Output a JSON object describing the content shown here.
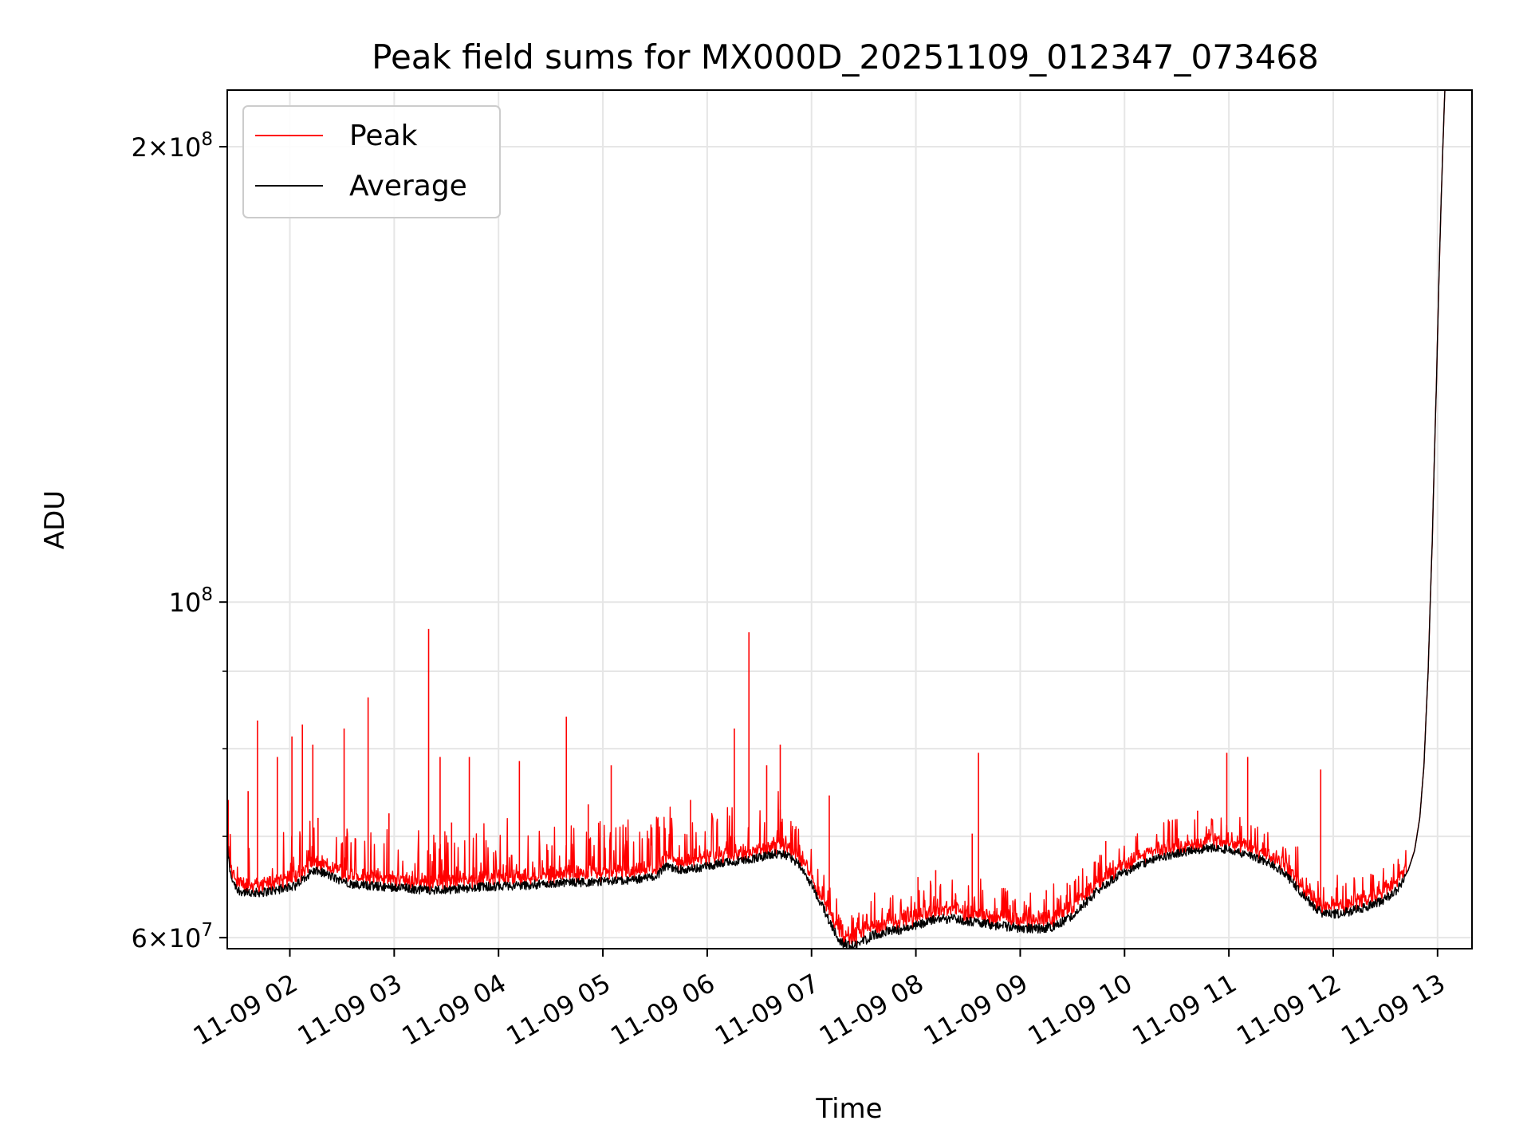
{
  "chart_data": {
    "type": "line",
    "title": "Peak field sums for MX000D_20251109_012347_073468",
    "xlabel": "Time",
    "ylabel": "ADU",
    "yscale": "log",
    "xlim_hours": [
      1.4,
      13.33
    ],
    "ylim": [
      59000000,
      218000000
    ],
    "grid": true,
    "legend_position": "top-left",
    "x_tick_hours": [
      2,
      3,
      4,
      5,
      6,
      7,
      8,
      9,
      10,
      11,
      12,
      13
    ],
    "x_tick_labels": [
      "11-09 02",
      "11-09 03",
      "11-09 04",
      "11-09 05",
      "11-09 06",
      "11-09 07",
      "11-09 08",
      "11-09 09",
      "11-09 10",
      "11-09 11",
      "11-09 12",
      "11-09 13"
    ],
    "y_ticks_major": [
      {
        "value": 60000000,
        "mantissa": "6",
        "exp": "7"
      },
      {
        "value": 100000000,
        "mantissa": "",
        "exp": "8"
      },
      {
        "value": 200000000,
        "mantissa": "2",
        "exp": "8"
      }
    ],
    "y_ticks_minor": [
      70000000,
      80000000,
      90000000
    ],
    "average_curve": [
      [
        1.4,
        69.0
      ],
      [
        1.43,
        66.0
      ],
      [
        1.5,
        64.5
      ],
      [
        1.6,
        64.2
      ],
      [
        1.75,
        64.3
      ],
      [
        1.9,
        64.6
      ],
      [
        2.05,
        64.9
      ],
      [
        2.15,
        65.8
      ],
      [
        2.22,
        66.4
      ],
      [
        2.3,
        66.3
      ],
      [
        2.45,
        65.6
      ],
      [
        2.6,
        65.1
      ],
      [
        2.8,
        64.9
      ],
      [
        3.0,
        64.8
      ],
      [
        3.2,
        64.6
      ],
      [
        3.4,
        64.5
      ],
      [
        3.6,
        64.6
      ],
      [
        3.8,
        64.8
      ],
      [
        4.0,
        64.9
      ],
      [
        4.3,
        65.0
      ],
      [
        4.6,
        65.2
      ],
      [
        4.9,
        65.3
      ],
      [
        5.2,
        65.4
      ],
      [
        5.5,
        65.8
      ],
      [
        5.6,
        66.8
      ],
      [
        5.7,
        66.6
      ],
      [
        5.85,
        66.6
      ],
      [
        6.0,
        66.9
      ],
      [
        6.2,
        67.3
      ],
      [
        6.4,
        67.6
      ],
      [
        6.55,
        67.9
      ],
      [
        6.68,
        68.2
      ],
      [
        6.78,
        67.9
      ],
      [
        6.88,
        67.0
      ],
      [
        6.98,
        65.4
      ],
      [
        7.1,
        63.0
      ],
      [
        7.2,
        61.0
      ],
      [
        7.28,
        59.6
      ],
      [
        7.36,
        59.2
      ],
      [
        7.45,
        59.4
      ],
      [
        7.6,
        60.3
      ],
      [
        7.75,
        60.6
      ],
      [
        7.9,
        60.8
      ],
      [
        8.05,
        61.3
      ],
      [
        8.2,
        61.8
      ],
      [
        8.4,
        61.7
      ],
      [
        8.6,
        61.4
      ],
      [
        8.8,
        61.1
      ],
      [
        9.0,
        60.9
      ],
      [
        9.15,
        60.8
      ],
      [
        9.3,
        61.0
      ],
      [
        9.45,
        61.7
      ],
      [
        9.6,
        63.0
      ],
      [
        9.75,
        64.5
      ],
      [
        9.9,
        65.7
      ],
      [
        10.1,
        66.8
      ],
      [
        10.3,
        67.6
      ],
      [
        10.5,
        68.2
      ],
      [
        10.7,
        68.6
      ],
      [
        10.85,
        68.8
      ],
      [
        11.0,
        68.6
      ],
      [
        11.2,
        68.0
      ],
      [
        11.4,
        67.2
      ],
      [
        11.55,
        66.0
      ],
      [
        11.7,
        64.2
      ],
      [
        11.82,
        62.8
      ],
      [
        11.9,
        62.3
      ],
      [
        12.0,
        62.2
      ],
      [
        12.1,
        62.3
      ],
      [
        12.3,
        62.8
      ],
      [
        12.5,
        63.6
      ],
      [
        12.62,
        64.6
      ],
      [
        12.72,
        66.5
      ],
      [
        12.78,
        68.5
      ],
      [
        12.83,
        72.0
      ],
      [
        12.87,
        78.0
      ],
      [
        12.91,
        90.0
      ],
      [
        12.95,
        110.0
      ],
      [
        12.99,
        140.0
      ],
      [
        13.03,
        180.0
      ],
      [
        13.07,
        218.0
      ]
    ],
    "peak_spikes": [
      [
        1.41,
        74.0
      ],
      [
        1.6,
        75.0
      ],
      [
        1.69,
        83.5
      ],
      [
        1.88,
        79.0
      ],
      [
        2.02,
        81.5
      ],
      [
        2.12,
        83.0
      ],
      [
        2.22,
        80.5
      ],
      [
        2.27,
        72.0
      ],
      [
        2.52,
        82.5
      ],
      [
        2.75,
        86.5
      ],
      [
        2.95,
        72.5
      ],
      [
        3.33,
        96.0
      ],
      [
        3.44,
        79.0
      ],
      [
        3.55,
        71.5
      ],
      [
        3.72,
        79.0
      ],
      [
        4.2,
        78.5
      ],
      [
        4.65,
        84.0
      ],
      [
        4.86,
        73.5
      ],
      [
        5.08,
        78.0
      ],
      [
        5.22,
        71.0
      ],
      [
        5.52,
        70.5
      ],
      [
        5.84,
        74.0
      ],
      [
        6.26,
        82.5
      ],
      [
        6.4,
        95.5
      ],
      [
        6.57,
        78.0
      ],
      [
        6.7,
        80.5
      ],
      [
        7.17,
        74.5
      ],
      [
        7.5,
        60.9
      ],
      [
        7.66,
        61.4
      ],
      [
        8.02,
        65.8
      ],
      [
        8.19,
        66.5
      ],
      [
        8.38,
        64.2
      ],
      [
        8.54,
        70.3
      ],
      [
        8.6,
        79.5
      ],
      [
        8.93,
        63.5
      ],
      [
        9.25,
        64.5
      ],
      [
        9.45,
        65.2
      ],
      [
        9.82,
        69.5
      ],
      [
        10.7,
        72.8
      ],
      [
        10.98,
        79.5
      ],
      [
        11.18,
        79.0
      ],
      [
        11.88,
        77.5
      ],
      [
        12.28,
        63.2
      ]
    ],
    "series": [
      {
        "name": "Peak",
        "color": "#ff0000"
      },
      {
        "name": "Average",
        "color": "#000000"
      }
    ]
  }
}
